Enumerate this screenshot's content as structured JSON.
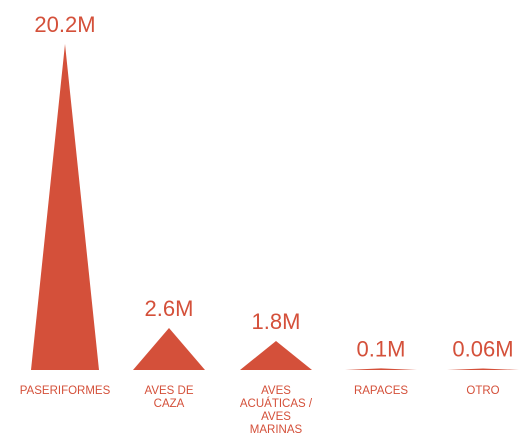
{
  "colors": {
    "accent": "#D4503A",
    "background": "#FFFFFF"
  },
  "chart_data": {
    "type": "bar",
    "mark_shape": "triangle",
    "categories": [
      [
        "PASERIFORMES"
      ],
      [
        "AVES DE",
        "CAZA"
      ],
      [
        "AVES",
        "ACUÁTICAS /",
        "AVES",
        "MARINAS"
      ],
      [
        "RAPACES"
      ],
      [
        "OTRO"
      ]
    ],
    "values": [
      20.2,
      2.6,
      1.8,
      0.1,
      0.06
    ],
    "value_labels": [
      "20.2M",
      "2.6M",
      "1.8M",
      "0.1M",
      "0.06M"
    ],
    "unit": "M",
    "title": "",
    "xlabel": "",
    "ylabel": "",
    "ylim": [
      0,
      20.2
    ],
    "grid": false,
    "legend": "none"
  }
}
